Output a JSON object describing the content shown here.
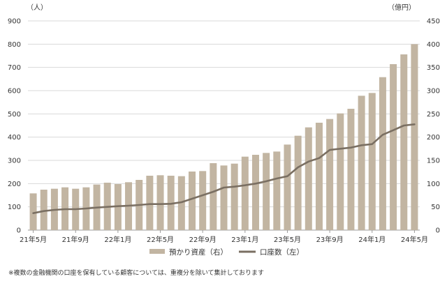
{
  "chart_data": {
    "type": "bar+line",
    "left_axis": {
      "unit": "（人）",
      "ylim": [
        0,
        900
      ],
      "ticks": [
        "0",
        "100",
        "200",
        "300",
        "400",
        "500",
        "600",
        "700",
        "800",
        "900"
      ]
    },
    "right_axis": {
      "unit": "（億円）",
      "ylim": [
        0,
        450
      ],
      "ticks": [
        "0",
        "50",
        "100",
        "150",
        "200",
        "250",
        "300",
        "350",
        "400",
        "450"
      ]
    },
    "x_tick_labels": [
      {
        "index": 0,
        "label": "21年5月"
      },
      {
        "index": 4,
        "label": "21年9月"
      },
      {
        "index": 8,
        "label": "22年1月"
      },
      {
        "index": 12,
        "label": "22年5月"
      },
      {
        "index": 16,
        "label": "22年9月"
      },
      {
        "index": 20,
        "label": "23年1月"
      },
      {
        "index": 24,
        "label": "23年5月"
      },
      {
        "index": 28,
        "label": "23年9月"
      },
      {
        "index": 32,
        "label": "24年1月"
      },
      {
        "index": 36,
        "label": "24年5月"
      }
    ],
    "categories": [
      "21年5月",
      "21年6月",
      "21年7月",
      "21年8月",
      "21年9月",
      "21年10月",
      "21年11月",
      "21年12月",
      "22年1月",
      "22年2月",
      "22年3月",
      "22年4月",
      "22年5月",
      "22年6月",
      "22年7月",
      "22年8月",
      "22年9月",
      "22年10月",
      "22年11月",
      "22年12月",
      "23年1月",
      "23年2月",
      "23年3月",
      "23年4月",
      "23年5月",
      "23年6月",
      "23年7月",
      "23年8月",
      "23年9月",
      "23年10月",
      "23年11月",
      "23年12月",
      "24年1月",
      "24年2月",
      "24年3月",
      "24年4月",
      "24年5月"
    ],
    "series": [
      {
        "name": "預かり資産（右）",
        "type": "bar",
        "axis": "right",
        "color": "#c2b5a2",
        "values": [
          79,
          87,
          89,
          92,
          89,
          92,
          98,
          102,
          99,
          103,
          108,
          117,
          118,
          117,
          116,
          126,
          127,
          144,
          139,
          143,
          158,
          162,
          166,
          169,
          184,
          203,
          221,
          231,
          239,
          251,
          261,
          289,
          295,
          329,
          357,
          378,
          400
        ]
      },
      {
        "name": "口座数（左）",
        "type": "line",
        "axis": "left",
        "color": "#7a6f62",
        "values": [
          73,
          82,
          87,
          90,
          90,
          93,
          97,
          100,
          103,
          105,
          108,
          112,
          112,
          113,
          120,
          135,
          150,
          165,
          183,
          187,
          193,
          200,
          210,
          222,
          232,
          270,
          295,
          310,
          345,
          350,
          355,
          365,
          370,
          410,
          430,
          450,
          455
        ]
      }
    ]
  },
  "note": "※複数の金融機関の口座を保有している顧客については、重複分を除いて集計しております"
}
